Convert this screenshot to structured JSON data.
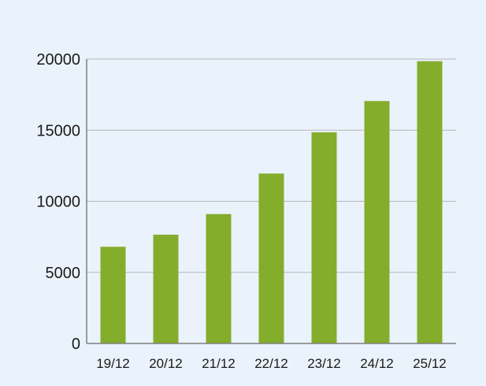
{
  "chart_data": {
    "type": "bar",
    "categories": [
      "19/12",
      "20/12",
      "21/12",
      "22/12",
      "23/12",
      "24/12",
      "25/12"
    ],
    "values": [
      6800,
      7650,
      9100,
      11950,
      14850,
      17050,
      19850
    ],
    "title": "",
    "xlabel": "",
    "ylabel": "",
    "ylim": [
      0,
      20000
    ],
    "yticks": [
      0,
      5000,
      10000,
      15000,
      20000
    ],
    "grid": true,
    "legend": "none",
    "bar_color": "#84ad2b",
    "grid_color": "#b7b7b7",
    "axis_color": "#7f7f7f",
    "background_color": "#eaf2fb"
  }
}
